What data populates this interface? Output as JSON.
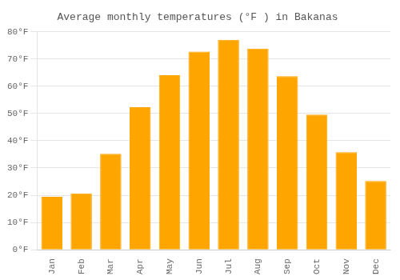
{
  "chart_data": {
    "type": "bar",
    "title": "Average monthly temperatures (°F ) in Bakanas",
    "categories": [
      "Jan",
      "Feb",
      "Mar",
      "Apr",
      "May",
      "Jun",
      "Jul",
      "Aug",
      "Sep",
      "Oct",
      "Nov",
      "Dec"
    ],
    "values": [
      19.4,
      20.7,
      35.2,
      52.3,
      64.0,
      72.7,
      77.0,
      73.8,
      63.7,
      49.6,
      35.8,
      25.2
    ],
    "color": "#FFA500",
    "ylim": [
      0,
      80
    ],
    "yticks": [
      {
        "value": 0,
        "label": "0°F"
      },
      {
        "value": 10,
        "label": "10°F"
      },
      {
        "value": 20,
        "label": "20°F"
      },
      {
        "value": 30,
        "label": "30°F"
      },
      {
        "value": 40,
        "label": "40°F"
      },
      {
        "value": 50,
        "label": "50°F"
      },
      {
        "value": 60,
        "label": "60°F"
      },
      {
        "value": 70,
        "label": "70°F"
      },
      {
        "value": 80,
        "label": "80°F"
      }
    ],
    "grid": true
  }
}
